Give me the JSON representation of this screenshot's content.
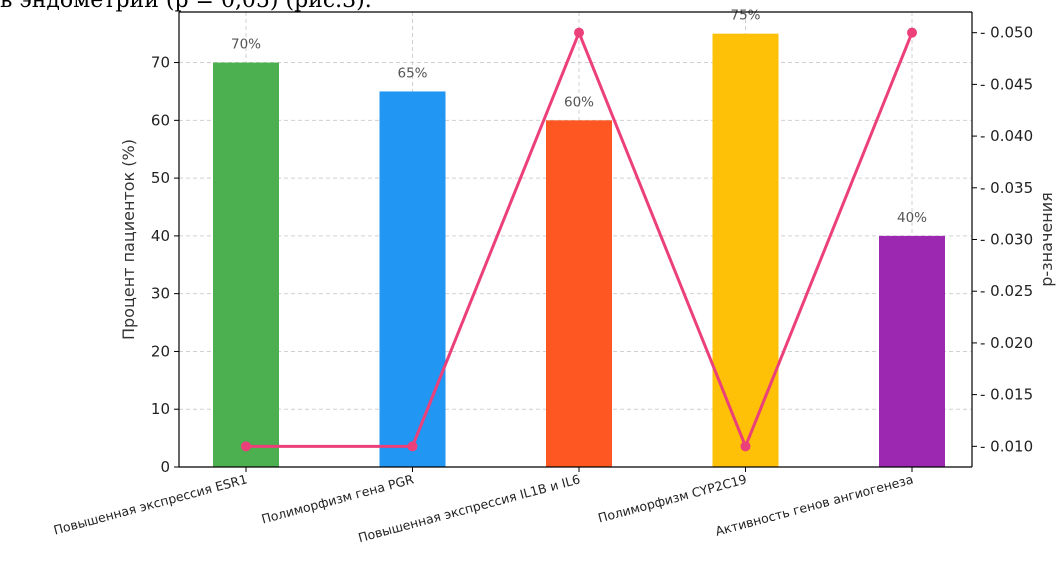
{
  "page_text": {
    "top_fragment": "в эндометрии (p = 0,05) (рис.3)."
  },
  "chart_data": {
    "type": "bar",
    "categories": [
      "Повышенная экспрессия ESR1",
      "Полиморфизм гена PGR",
      "Повышенная экспрессия IL1B и IL6",
      "Полиморфизм CYP2C19",
      "Активность генов ангиогенеза"
    ],
    "values": [
      70,
      65,
      60,
      75,
      40
    ],
    "value_labels": [
      "70%",
      "65%",
      "60%",
      "75%",
      "40%"
    ],
    "bar_colors": [
      "#4CAF50",
      "#2196F3",
      "#FF5722",
      "#FFC107",
      "#9C27B0"
    ],
    "ylabel": "Процент пациенток (%)",
    "ylim": [
      0,
      78.75
    ],
    "yticks": [
      0,
      10,
      20,
      30,
      40,
      50,
      60,
      70
    ],
    "secondary": {
      "type": "line",
      "values": [
        0.01,
        0.01,
        0.05,
        0.01,
        0.05
      ],
      "color": "#EC407A",
      "ylabel": "p-значения",
      "ylim": [
        0.008,
        0.052
      ],
      "yticks": [
        0.01,
        0.015,
        0.02,
        0.025,
        0.03,
        0.035,
        0.04,
        0.045,
        0.05
      ],
      "ytick_labels": [
        "0.010",
        "0.015",
        "0.020",
        "0.025",
        "0.030",
        "0.035",
        "0.040",
        "0.045",
        "0.050"
      ]
    },
    "grid": true
  }
}
